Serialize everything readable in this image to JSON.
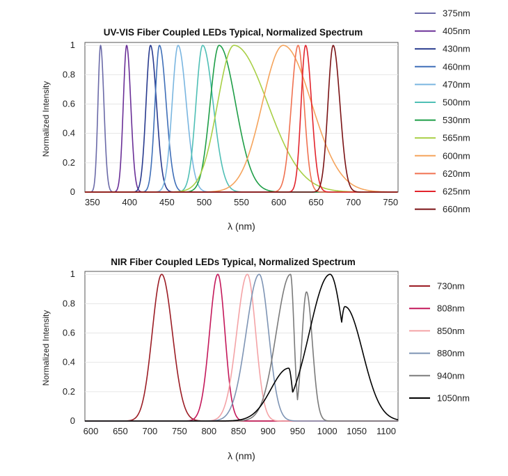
{
  "chart_data": [
    {
      "type": "line",
      "title": "UV-VIS Fiber Coupled LEDs Typical, Normalized Spectrum",
      "xlabel": "λ (nm)",
      "ylabel": "Normalized Intensity",
      "xlim": [
        340,
        760
      ],
      "ylim": [
        0,
        1.02
      ],
      "xticks": [
        350,
        400,
        450,
        500,
        550,
        600,
        650,
        700,
        750
      ],
      "yticks": [
        0,
        0.2,
        0.4,
        0.6,
        0.8,
        1
      ],
      "ytick_labels": [
        "0",
        "0.2",
        "0.4",
        "0.6",
        "0.8",
        "1"
      ],
      "legend_position": "right",
      "series": [
        {
          "name": "375nm",
          "color": "#6b6aa8",
          "peak": 361,
          "left_width": 3.5,
          "right_width": 4.5
        },
        {
          "name": "405nm",
          "color": "#6a2f97",
          "peak": 396,
          "left_width": 4.5,
          "right_width": 5.5
        },
        {
          "name": "430nm",
          "color": "#283a8e",
          "peak": 428,
          "left_width": 6,
          "right_width": 8
        },
        {
          "name": "460nm",
          "color": "#3f6fb8",
          "peak": 440,
          "left_width": 6,
          "right_width": 9
        },
        {
          "name": "470nm",
          "color": "#7ab6e0",
          "peak": 465,
          "left_width": 8,
          "right_width": 11
        },
        {
          "name": "500nm",
          "color": "#4fbfb5",
          "peak": 498,
          "left_width": 9,
          "right_width": 14
        },
        {
          "name": "530nm",
          "color": "#1e9e47",
          "peak": 520,
          "left_width": 12,
          "right_width": 22
        },
        {
          "name": "565nm",
          "color": "#a8cf45",
          "peak": 540,
          "left_width": 22,
          "right_width": 45
        },
        {
          "name": "600nm",
          "color": "#f5a45c",
          "peak": 606,
          "left_width": 28,
          "right_width": 38
        },
        {
          "name": "620nm",
          "color": "#f07150",
          "peak": 626,
          "left_width": 9,
          "right_width": 8
        },
        {
          "name": "625nm",
          "color": "#e2232c",
          "peak": 636,
          "left_width": 6,
          "right_width": 8
        },
        {
          "name": "660nm",
          "color": "#7a1214",
          "peak": 673,
          "left_width": 7,
          "right_width": 9
        }
      ]
    },
    {
      "type": "line",
      "title": "NIR Fiber Coupled LEDs Typical, Normalized Spectrum",
      "xlabel": "λ (nm)",
      "ylabel": "Normalized Intensity",
      "xlim": [
        590,
        1120
      ],
      "ylim": [
        0,
        1.02
      ],
      "xticks": [
        600,
        650,
        700,
        750,
        800,
        850,
        900,
        950,
        1000,
        1050,
        1100
      ],
      "yticks": [
        0,
        0.2,
        0.4,
        0.6,
        0.8,
        1
      ],
      "ytick_labels": [
        "0",
        "0.2",
        "0.4",
        "0.6",
        "0.8",
        "1"
      ],
      "legend_position": "right",
      "series": [
        {
          "name": "730nm",
          "color": "#9b1c24",
          "peaks": [
            [
              720,
              1.0,
              16,
              18
            ]
          ]
        },
        {
          "name": "808nm",
          "color": "#c4185a",
          "peaks": [
            [
              815,
              1.0,
              14,
              12
            ]
          ]
        },
        {
          "name": "850nm",
          "color": "#f4a3a6",
          "peaks": [
            [
              865,
              1.0,
              18,
              14
            ]
          ]
        },
        {
          "name": "880nm",
          "color": "#7e94b4",
          "peaks": [
            [
              885,
              1.0,
              22,
              16
            ]
          ]
        },
        {
          "name": "940nm",
          "color": "#7a7a7a",
          "peaks": [
            [
              938,
              1.0,
              24,
              6
            ],
            [
              965,
              0.88,
              8,
              10
            ]
          ]
        },
        {
          "name": "1050nm",
          "color": "#000000",
          "peaks": [
            [
              935,
              0.36,
              30,
              6
            ],
            [
              1005,
              1.0,
              35,
              22
            ],
            [
              1030,
              0.78,
              10,
              30
            ]
          ]
        }
      ]
    }
  ]
}
